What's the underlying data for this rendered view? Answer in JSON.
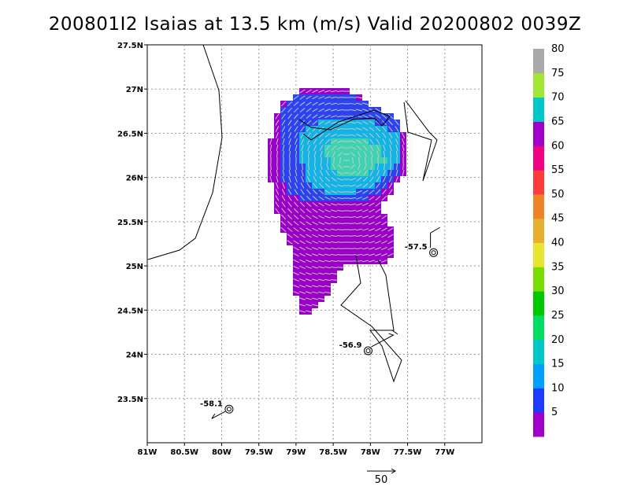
{
  "title": "200801I2 Isaias at 13.5 km (m/s) Valid 20200802 0039Z",
  "x_ticks": [
    "81W",
    "80.5W",
    "80W",
    "79.5W",
    "79W",
    "78.5W",
    "78W",
    "77.5W",
    "77W"
  ],
  "y_ticks": [
    "23.5N",
    "24N",
    "24.5N",
    "25N",
    "25.5N",
    "26N",
    "26.5N",
    "27N",
    "27.5N"
  ],
  "colorbar": {
    "labels": [
      "5",
      "10",
      "15",
      "20",
      "25",
      "30",
      "35",
      "40",
      "45",
      "50",
      "55",
      "60",
      "65",
      "70",
      "75",
      "80"
    ],
    "colors": [
      "#a000c8",
      "#1e3cff",
      "#00a0ff",
      "#00c8c8",
      "#00dc64",
      "#00c800",
      "#78dc00",
      "#e6e632",
      "#e6af2d",
      "#f08228",
      "#fa3c3c",
      "#f00082",
      "#a000c8",
      "#00c8c8",
      "#a0e632",
      "#aaaaaa"
    ]
  },
  "storm_markers": [
    {
      "label": "-57.5",
      "lon": -77.15,
      "lat": 25.15
    },
    {
      "label": "-56.9",
      "lon": -78.03,
      "lat": 24.04
    },
    {
      "label": "-58.1",
      "lon": -79.9,
      "lat": 23.38
    }
  ],
  "reference_vector": {
    "label": "50"
  }
}
